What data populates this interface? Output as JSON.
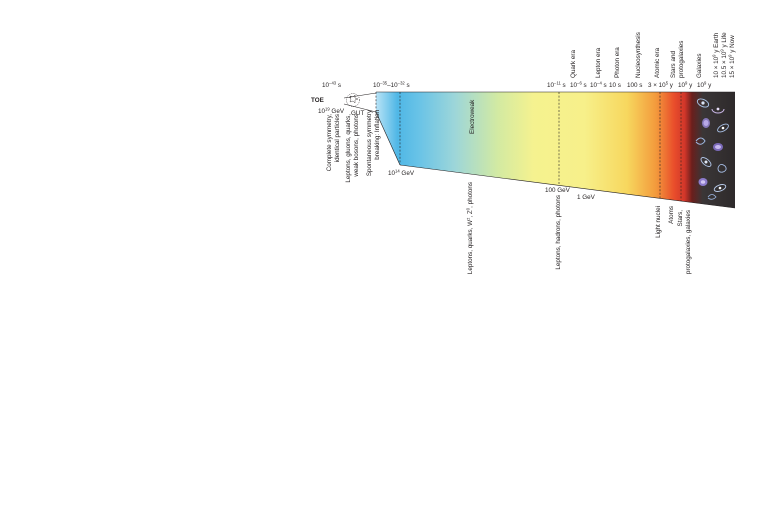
{
  "diagram": {
    "toe_label": "TOE",
    "gut_label": "GUT",
    "electroweak_label": "Electroweak",
    "top_times": {
      "t1": {
        "base": "10",
        "exp": "−43",
        "unit": " s"
      },
      "t2": {
        "base": "10",
        "exp": "−35",
        "mid": "–10",
        "exp2": "−32",
        "unit": " s"
      },
      "t3": {
        "base": "10",
        "exp": "−11",
        "unit": " s"
      },
      "t4": {
        "base": "10",
        "exp": "−6",
        "unit": " s"
      },
      "t5": {
        "base": "10",
        "exp": "−4",
        "unit": " s"
      },
      "t6": "10 s",
      "t7": "100 s",
      "t8": {
        "base": "3 × 10",
        "exp": "5",
        "unit": " y"
      },
      "t9": {
        "base": "10",
        "exp": "9",
        "unit": " y"
      },
      "t10": {
        "base": "10",
        "exp": "9",
        "unit": " y"
      }
    },
    "energies": {
      "e1": {
        "base": "10",
        "exp": "19",
        "unit": " GeV"
      },
      "e2": {
        "base": "10",
        "exp": "14",
        "unit": " GeV"
      },
      "e3": "100 GeV",
      "e4": "1  GeV"
    },
    "top_vertical_labels": {
      "quark_era": "Quark era",
      "lepton_era": "Lepton era",
      "photon_era": "Photon era",
      "nucleosynthesis": "Nucleosynthesis",
      "atomic_era": "Atomic era",
      "stars_line1": "Stars and",
      "stars_line2": "protogalaxies",
      "galaxies": "Galaxies",
      "earth": {
        "base": "10 × 10",
        "exp": "9",
        "unit": " y Earth"
      },
      "life": {
        "base": "10.5 × 10",
        "exp": "9",
        "unit": " y Life"
      },
      "now": {
        "base": "15 × 10",
        "exp": "9",
        "unit": " y Now"
      }
    },
    "left_vertical_labels": {
      "complete_symmetry_1": "Complete symmetry,",
      "complete_symmetry_2": "identical particles",
      "leptons_gluons_1": "Leptons, gluons, quarks,",
      "leptons_gluons_2": "weak bosons, photons",
      "spontaneous_1": "Spontaneous symmetry",
      "spontaneous_2": "breaking: Inflation"
    },
    "bottom_vertical_labels": {
      "leptons_quarks": {
        "text": "Leptons, quarks, W",
        "sup1": "±",
        "mid": ", Z",
        "sup2": "0",
        "end": ", photons"
      },
      "leptons_hadrons": "Leptons, hadrons, photons",
      "light_nuclei": "Light nuclei",
      "atoms": "Atoms",
      "stars_galaxies_1": "Stars,",
      "stars_galaxies_2": "protogalaxies, galaxies"
    },
    "colors": {
      "spectrum": [
        "#b9e3f6",
        "#4fb7e6",
        "#69c3e7",
        "#9dd6d9",
        "#d3eaa2",
        "#f5f28f",
        "#f7f08a",
        "#f7d75e",
        "#f39a3c",
        "#e94e2b",
        "#d1362a",
        "#6b1f1c",
        "#3a3637",
        "#2e2a2b"
      ],
      "line": "#231f20"
    }
  }
}
